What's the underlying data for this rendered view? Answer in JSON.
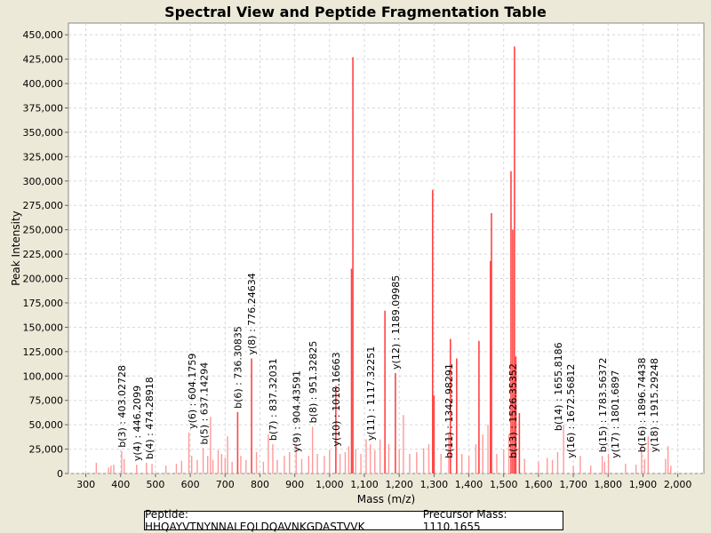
{
  "chart_data": {
    "type": "bar",
    "title": "Spectral View and Peptide Fragmentation Table",
    "xlabel": "Mass (m/z)",
    "ylabel": "Peak Intensity",
    "xlim": [
      250,
      2075
    ],
    "ylim": [
      0,
      462000
    ],
    "x_ticks": [
      300,
      400,
      500,
      600,
      700,
      800,
      900,
      1000,
      1100,
      1200,
      1300,
      1400,
      1500,
      1600,
      1700,
      1800,
      1900,
      2000
    ],
    "x_tick_labels": [
      "300",
      "400",
      "500",
      "600",
      "700",
      "800",
      "900",
      "1,000",
      "1,100",
      "1,200",
      "1,300",
      "1,400",
      "1,500",
      "1,600",
      "1,700",
      "1,800",
      "1,900",
      "2,000"
    ],
    "y_ticks": [
      0,
      25000,
      50000,
      75000,
      100000,
      125000,
      150000,
      175000,
      200000,
      225000,
      250000,
      275000,
      300000,
      325000,
      350000,
      375000,
      400000,
      425000,
      450000
    ],
    "y_tick_labels": [
      "0",
      "25,000",
      "50,000",
      "75,000",
      "100,000",
      "125,000",
      "150,000",
      "175,000",
      "200,000",
      "225,000",
      "250,000",
      "275,000",
      "300,000",
      "325,000",
      "350,000",
      "375,000",
      "400,000",
      "425,000",
      "450,000"
    ],
    "grid": true,
    "peaks": [
      [
        330,
        11000
      ],
      [
        365,
        6000
      ],
      [
        372,
        8000
      ],
      [
        380,
        9000
      ],
      [
        403,
        23000
      ],
      [
        410,
        15000
      ],
      [
        446,
        9000
      ],
      [
        474,
        11000
      ],
      [
        490,
        10000
      ],
      [
        530,
        8000
      ],
      [
        560,
        10000
      ],
      [
        575,
        13000
      ],
      [
        596,
        42000
      ],
      [
        604,
        18000
      ],
      [
        620,
        14000
      ],
      [
        637,
        26000
      ],
      [
        650,
        18000
      ],
      [
        658,
        58000
      ],
      [
        665,
        14000
      ],
      [
        680,
        24000
      ],
      [
        690,
        20000
      ],
      [
        700,
        16000
      ],
      [
        707,
        38000
      ],
      [
        720,
        12000
      ],
      [
        736,
        63000
      ],
      [
        745,
        18000
      ],
      [
        760,
        14000
      ],
      [
        776,
        118000
      ],
      [
        790,
        22000
      ],
      [
        810,
        12000
      ],
      [
        824,
        40000
      ],
      [
        837,
        30000
      ],
      [
        850,
        14000
      ],
      [
        870,
        18000
      ],
      [
        885,
        22000
      ],
      [
        904,
        30000
      ],
      [
        920,
        15000
      ],
      [
        940,
        18000
      ],
      [
        951,
        48000
      ],
      [
        965,
        20000
      ],
      [
        985,
        18000
      ],
      [
        1000,
        24000
      ],
      [
        1018,
        90000
      ],
      [
        1030,
        20000
      ],
      [
        1045,
        22000
      ],
      [
        1055,
        28000
      ],
      [
        1063,
        210000
      ],
      [
        1067,
        427000
      ],
      [
        1075,
        25000
      ],
      [
        1090,
        20000
      ],
      [
        1105,
        35000
      ],
      [
        1117,
        30000
      ],
      [
        1130,
        24000
      ],
      [
        1145,
        35000
      ],
      [
        1159,
        167000
      ],
      [
        1170,
        30000
      ],
      [
        1189,
        103000
      ],
      [
        1200,
        25000
      ],
      [
        1212,
        60000
      ],
      [
        1230,
        20000
      ],
      [
        1250,
        22000
      ],
      [
        1270,
        26000
      ],
      [
        1285,
        30000
      ],
      [
        1296,
        291000
      ],
      [
        1300,
        80000
      ],
      [
        1320,
        20000
      ],
      [
        1342,
        40000
      ],
      [
        1347,
        138000
      ],
      [
        1365,
        118000
      ],
      [
        1380,
        20000
      ],
      [
        1400,
        18000
      ],
      [
        1420,
        30000
      ],
      [
        1429,
        136000
      ],
      [
        1440,
        40000
      ],
      [
        1455,
        50000
      ],
      [
        1462,
        218000
      ],
      [
        1465,
        267000
      ],
      [
        1480,
        20000
      ],
      [
        1500,
        25000
      ],
      [
        1515,
        40000
      ],
      [
        1521,
        310000
      ],
      [
        1526,
        250000
      ],
      [
        1531,
        438000
      ],
      [
        1535,
        120000
      ],
      [
        1545,
        62000
      ],
      [
        1560,
        15000
      ],
      [
        1600,
        12000
      ],
      [
        1625,
        16000
      ],
      [
        1640,
        14000
      ],
      [
        1655,
        22000
      ],
      [
        1672,
        50000
      ],
      [
        1700,
        8000
      ],
      [
        1720,
        18000
      ],
      [
        1750,
        8000
      ],
      [
        1783,
        18000
      ],
      [
        1790,
        12000
      ],
      [
        1801,
        20000
      ],
      [
        1850,
        10000
      ],
      [
        1880,
        9000
      ],
      [
        1896,
        30000
      ],
      [
        1905,
        15000
      ],
      [
        1915,
        38000
      ],
      [
        1965,
        15000
      ],
      [
        1972,
        28000
      ],
      [
        1980,
        8000
      ]
    ],
    "annotations": [
      {
        "label": "b(3) : 403.02728",
        "mz": 403.02728,
        "intensity": 23000
      },
      {
        "label": "y(4) : 446.2099",
        "mz": 446.2099,
        "intensity": 9000
      },
      {
        "label": "b(4) : 474.28918",
        "mz": 474.28918,
        "intensity": 11000
      },
      {
        "label": "y(6) : 604.1759",
        "mz": 604.1759,
        "intensity": 42000
      },
      {
        "label": "b(5) : 637.14294",
        "mz": 637.14294,
        "intensity": 26000
      },
      {
        "label": "b(6) : 736.30835",
        "mz": 736.30835,
        "intensity": 63000
      },
      {
        "label": "y(8) : 776.24634",
        "mz": 776.24634,
        "intensity": 118000
      },
      {
        "label": "b(7) : 837.32031",
        "mz": 837.32031,
        "intensity": 30000
      },
      {
        "label": "y(9) : 904.43591",
        "mz": 904.43591,
        "intensity": 18000
      },
      {
        "label": "b(8) : 951.32825",
        "mz": 951.32825,
        "intensity": 48000
      },
      {
        "label": "y(10) : 1018.16663",
        "mz": 1018.16663,
        "intensity": 24000
      },
      {
        "label": "y(11) : 1117.32251",
        "mz": 1117.32251,
        "intensity": 30000
      },
      {
        "label": "y(12) : 1189.09985",
        "mz": 1189.09985,
        "intensity": 103000
      },
      {
        "label": "b(11) : 1342.98291",
        "mz": 1342.98291,
        "intensity": 12000
      },
      {
        "label": "b(13) : 1526.35352",
        "mz": 1526.35352,
        "intensity": 12000
      },
      {
        "label": "b(14) : 1655.8186",
        "mz": 1655.8186,
        "intensity": 40000
      },
      {
        "label": "y(16) : 1672.56812",
        "mz": 1672.56812,
        "intensity": 12000
      },
      {
        "label": "b(15) : 1783.56372",
        "mz": 1783.56372,
        "intensity": 18000
      },
      {
        "label": "y(17) : 1801.6897",
        "mz": 1801.6897,
        "intensity": 12000
      },
      {
        "label": "b(16) : 1896.74438",
        "mz": 1896.74438,
        "intensity": 18000
      },
      {
        "label": "y(18) : 1915.29248",
        "mz": 1915.29248,
        "intensity": 18000
      }
    ],
    "colors": {
      "peak": "#FF4444",
      "peak_light": "#FF9999",
      "grid": "#D8D8D8",
      "background": "#ECE9D8"
    }
  },
  "legend": {
    "peptide": "Peptide: HHQAYVTNYNNALEQLDQAVNKGDASTVVK",
    "precursor": "Precursor Mass: 1110.1655"
  }
}
